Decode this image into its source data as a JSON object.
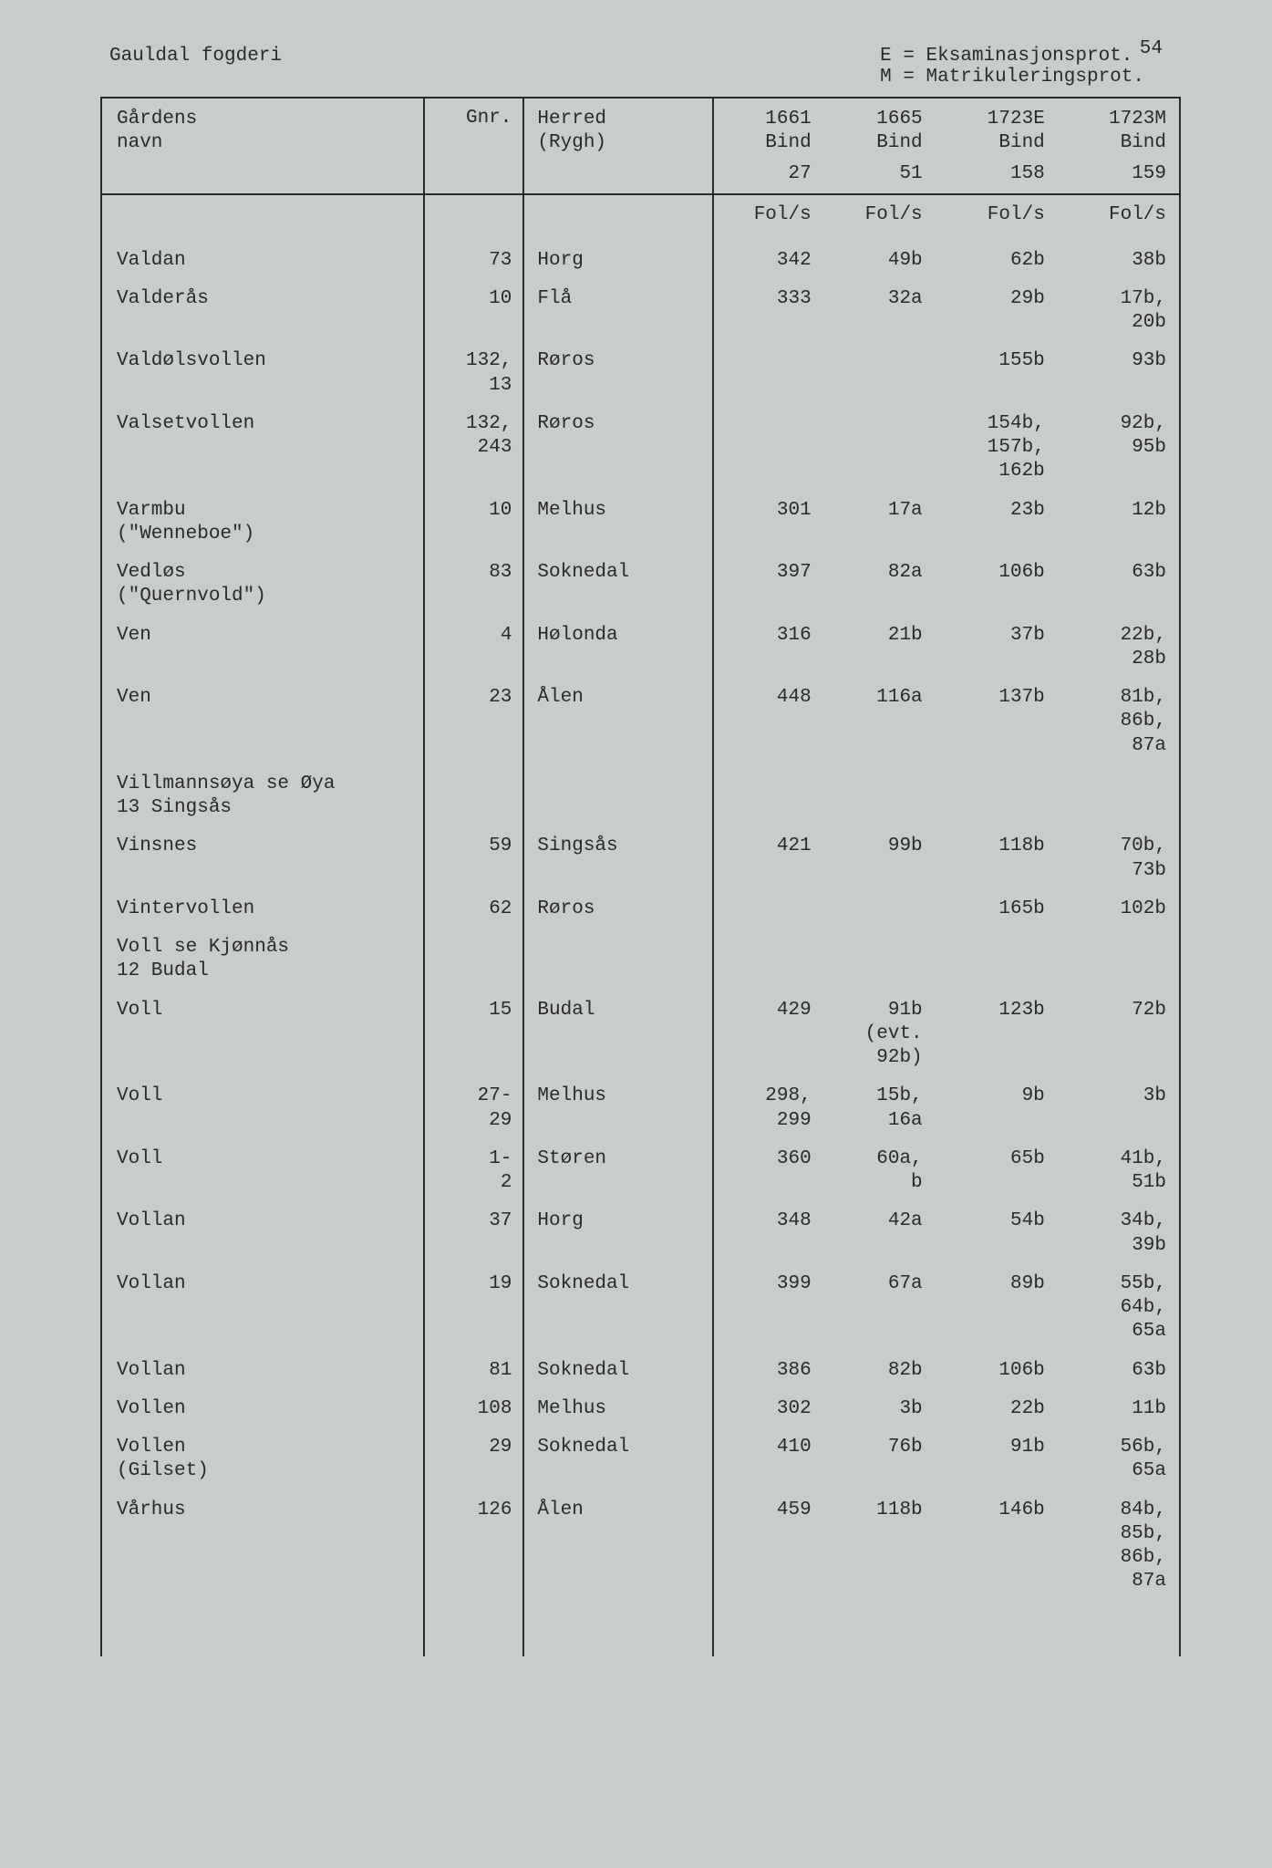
{
  "page_number": "54",
  "title_left": "Gauldal fogderi",
  "legend": {
    "line1": "E = Eksaminasjonsprot.",
    "line2": "M = Matrikuleringsprot."
  },
  "columns": {
    "navn": "Gårdens\nnavn",
    "gnr": "Gnr.",
    "herred": "Herred\n(Rygh)",
    "b1_top": "1661\nBind",
    "b2_top": "1665\nBind",
    "b3_top": "1723E\nBind",
    "b4_top": "1723M\nBind",
    "b1_num": "27",
    "b2_num": "51",
    "b3_num": "158",
    "b4_num": "159",
    "fols": "Fol/s"
  },
  "rows": [
    {
      "navn": "Valdan",
      "gnr": "73",
      "herred": "Horg",
      "b1": "342",
      "b2": "49b",
      "b3": "62b",
      "b4": "38b"
    },
    {
      "navn": "Valderås",
      "gnr": "10",
      "herred": "Flå",
      "b1": "333",
      "b2": "32a",
      "b3": "29b",
      "b4": "17b,\n20b"
    },
    {
      "navn": "Valdølsvollen",
      "gnr": "132,\n13",
      "herred": "Røros",
      "b1": "",
      "b2": "",
      "b3": "155b",
      "b4": "93b"
    },
    {
      "navn": "Valsetvollen",
      "gnr": "132,\n243",
      "herred": "Røros",
      "b1": "",
      "b2": "",
      "b3": "154b,\n157b,\n162b",
      "b4": "92b,\n95b"
    },
    {
      "navn": "Varmbu\n(\"Wenneboe\")",
      "gnr": "10",
      "herred": "Melhus",
      "b1": "301",
      "b2": "17a",
      "b3": "23b",
      "b4": "12b"
    },
    {
      "navn": "Vedløs\n(\"Quernvold\")",
      "gnr": "83",
      "herred": "Soknedal",
      "b1": "397",
      "b2": "82a",
      "b3": "106b",
      "b4": "63b"
    },
    {
      "navn": "Ven",
      "gnr": "4",
      "herred": "Hølonda",
      "b1": "316",
      "b2": "21b",
      "b3": "37b",
      "b4": "22b,\n28b"
    },
    {
      "navn": "Ven",
      "gnr": "23",
      "herred": "Ålen",
      "b1": "448",
      "b2": "116a",
      "b3": "137b",
      "b4": "81b,\n86b,\n87a"
    },
    {
      "navn": "Villmannsøya se Øya\n13 Singsås",
      "gnr": "",
      "herred": "",
      "b1": "",
      "b2": "",
      "b3": "",
      "b4": ""
    },
    {
      "navn": "Vinsnes",
      "gnr": "59",
      "herred": "Singsås",
      "b1": "421",
      "b2": "99b",
      "b3": "118b",
      "b4": "70b,\n73b"
    },
    {
      "navn": "Vintervollen",
      "gnr": "62",
      "herred": "Røros",
      "b1": "",
      "b2": "",
      "b3": "165b",
      "b4": "102b"
    },
    {
      "navn": "Voll se Kjønnås\n12 Budal",
      "gnr": "",
      "herred": "",
      "b1": "",
      "b2": "",
      "b3": "",
      "b4": ""
    },
    {
      "navn": "Voll",
      "gnr": "15",
      "herred": "Budal",
      "b1": "429",
      "b2": "91b\n(evt.\n92b)",
      "b3": "123b",
      "b4": "72b"
    },
    {
      "navn": "Voll",
      "gnr": "27-\n29",
      "herred": "Melhus",
      "b1": "298,\n299",
      "b2": "15b,\n16a",
      "b3": "9b",
      "b4": "3b"
    },
    {
      "navn": "Voll",
      "gnr": "1-\n2",
      "herred": "Støren",
      "b1": "360",
      "b2": "60a,\nb",
      "b3": "65b",
      "b4": "41b,\n51b"
    },
    {
      "navn": "Vollan",
      "gnr": "37",
      "herred": "Horg",
      "b1": "348",
      "b2": "42a",
      "b3": "54b",
      "b4": "34b,\n39b"
    },
    {
      "navn": "Vollan",
      "gnr": "19",
      "herred": "Soknedal",
      "b1": "399",
      "b2": "67a",
      "b3": "89b",
      "b4": "55b,\n64b,\n65a"
    },
    {
      "navn": "Vollan",
      "gnr": "81",
      "herred": "Soknedal",
      "b1": "386",
      "b2": "82b",
      "b3": "106b",
      "b4": "63b"
    },
    {
      "navn": "Vollen",
      "gnr": "108",
      "herred": "Melhus",
      "b1": "302",
      "b2": "3b",
      "b3": "22b",
      "b4": "11b"
    },
    {
      "navn": "Vollen\n(Gilset)",
      "gnr": "29",
      "herred": "Soknedal",
      "b1": "410",
      "b2": "76b",
      "b3": "91b",
      "b4": "56b,\n65a"
    },
    {
      "navn": "Vårhus",
      "gnr": "126",
      "herred": "Ålen",
      "b1": "459",
      "b2": "118b",
      "b3": "146b",
      "b4": "84b,\n85b,\n86b,\n87a"
    }
  ]
}
